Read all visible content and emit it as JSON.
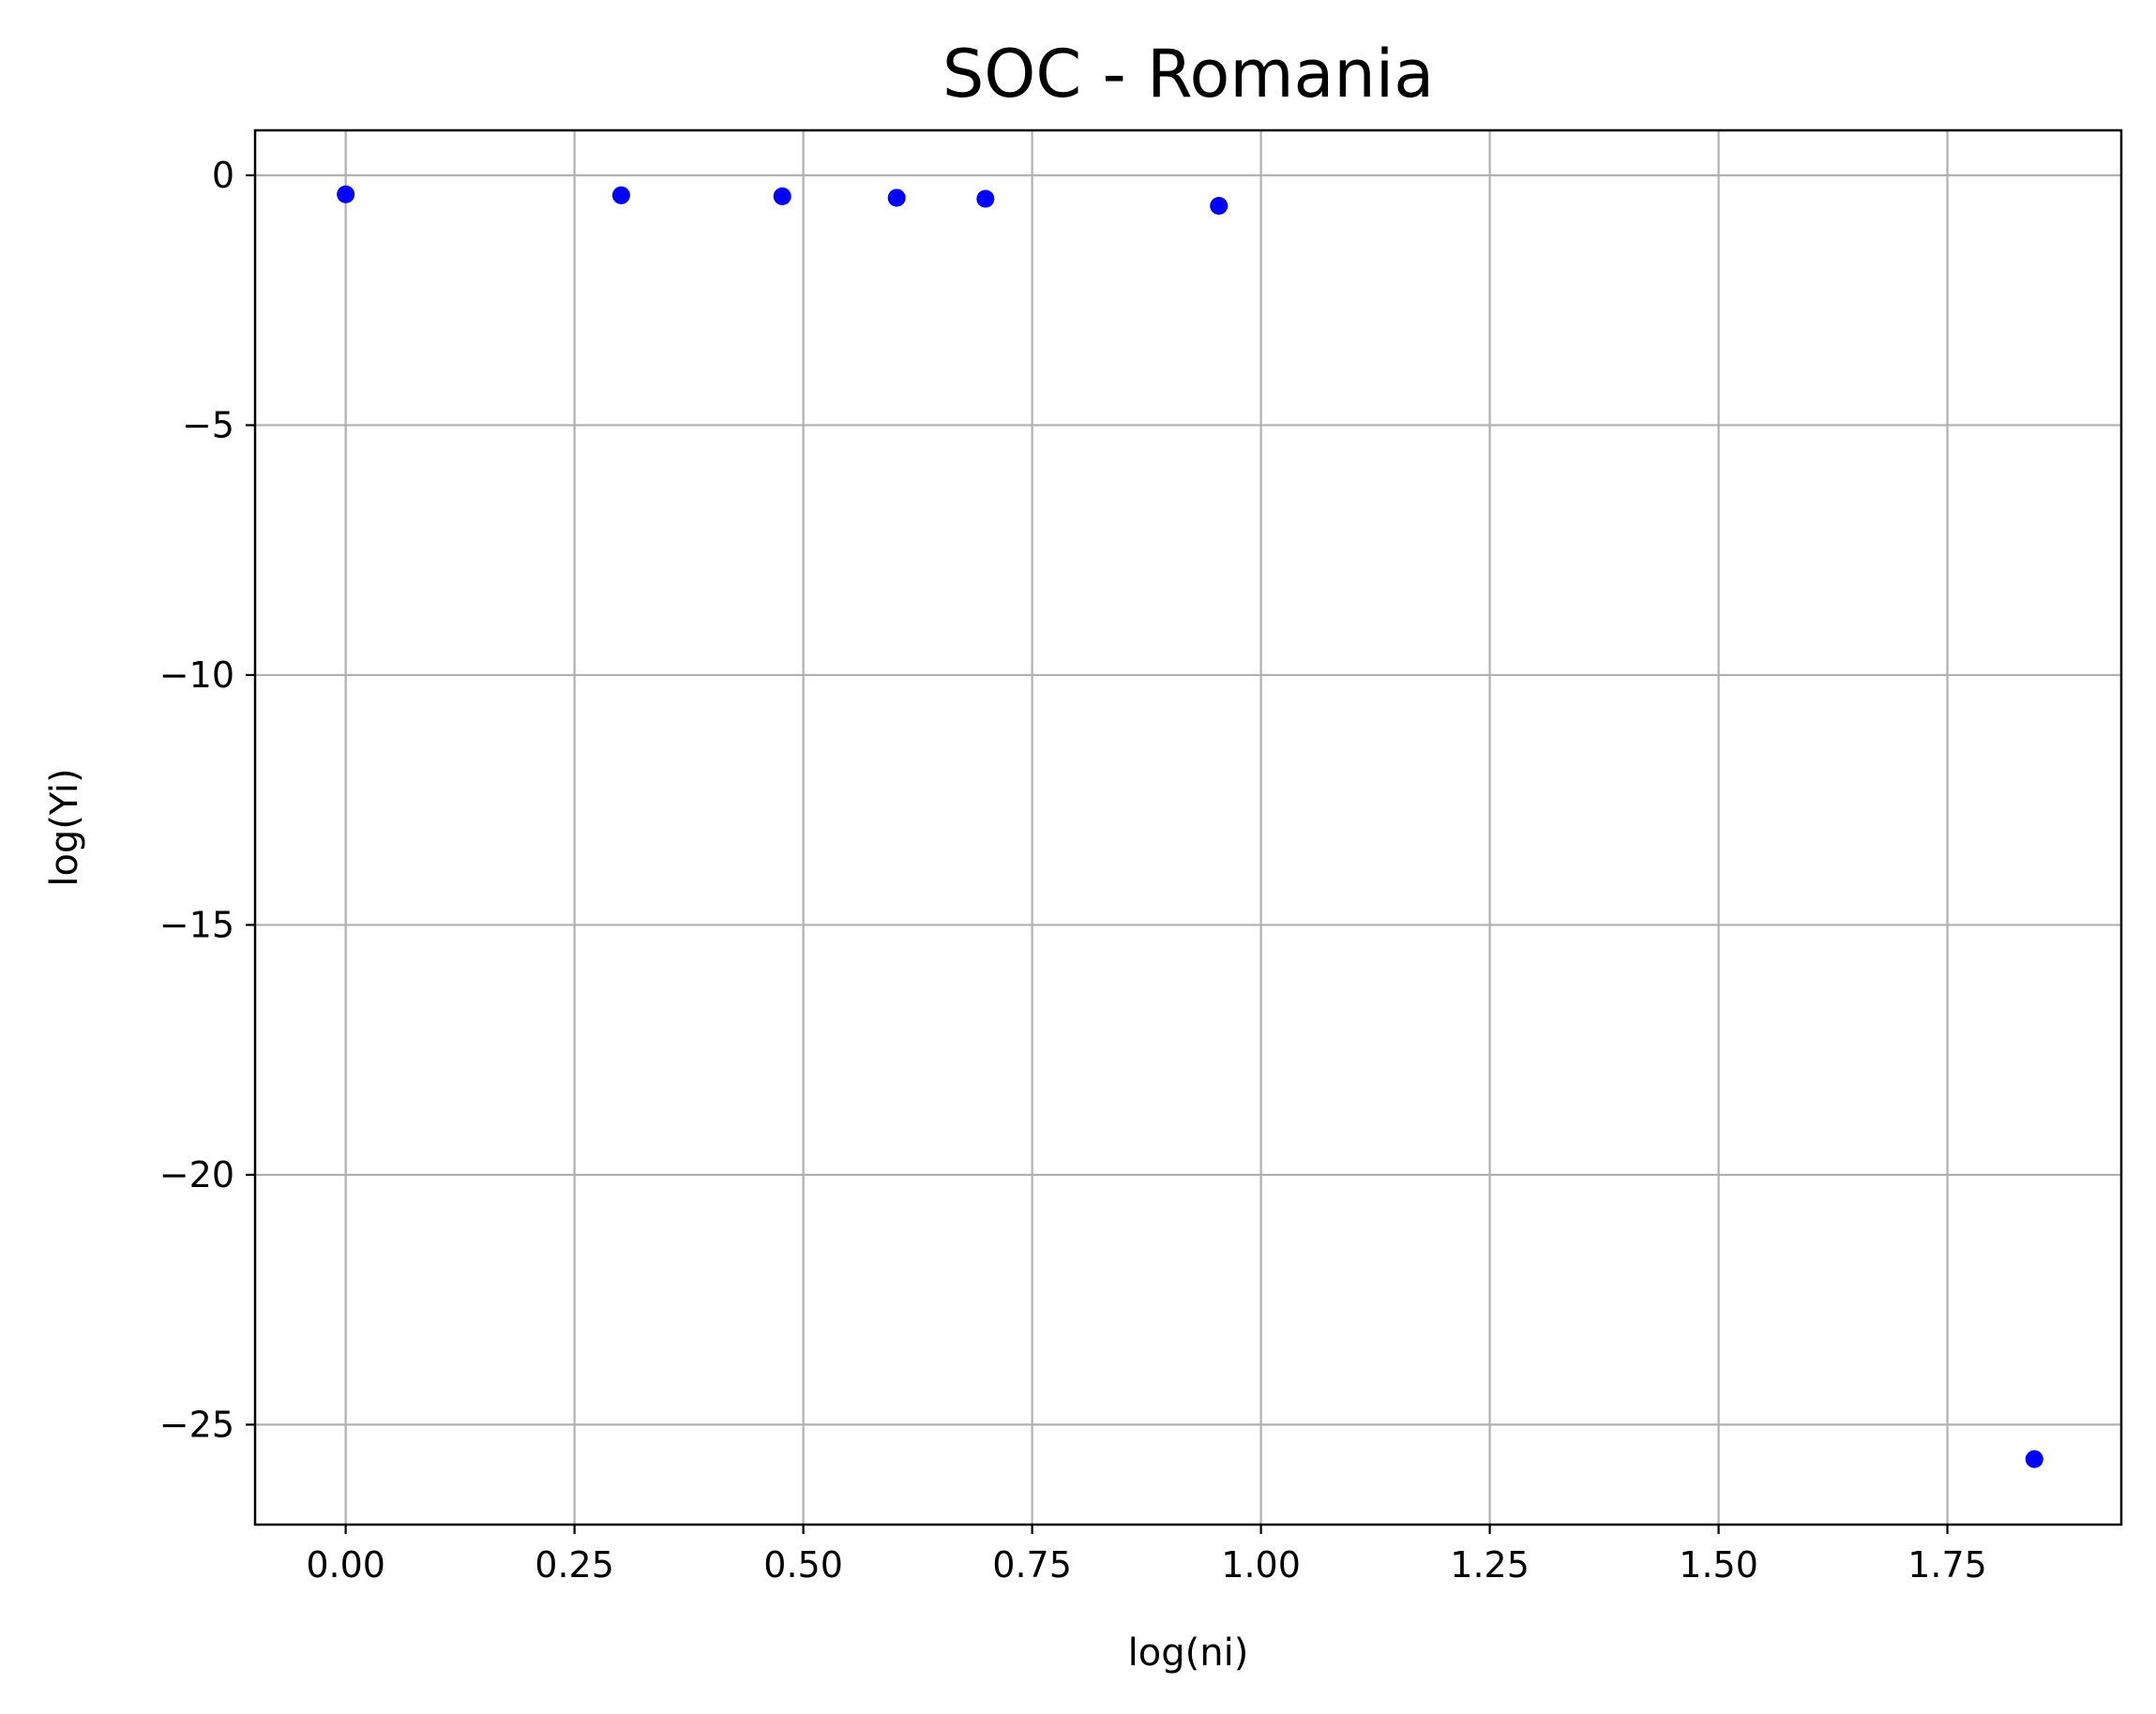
{
  "chart_data": {
    "type": "scatter",
    "title": "SOC - Romania",
    "xlabel": "log(ni)",
    "ylabel": "log(Yi)",
    "xlim": [
      -0.099,
      1.94
    ],
    "ylim": [
      -27.0,
      0.9
    ],
    "x_ticks": [
      0.0,
      0.25,
      0.5,
      0.75,
      1.0,
      1.25,
      1.5,
      1.75
    ],
    "x_tick_labels": [
      "0.00",
      "0.25",
      "0.50",
      "0.75",
      "1.00",
      "1.25",
      "1.50",
      "1.75"
    ],
    "y_ticks": [
      0,
      -5,
      -10,
      -15,
      -20,
      -25
    ],
    "y_tick_labels": [
      "0",
      "−5",
      "−10",
      "−15",
      "−20",
      "−25"
    ],
    "grid": true,
    "series": [
      {
        "color": "#0000ff",
        "points": [
          {
            "x": 0.0,
            "y": -0.38
          },
          {
            "x": 0.301,
            "y": -0.4
          },
          {
            "x": 0.477,
            "y": -0.42
          },
          {
            "x": 0.602,
            "y": -0.45
          },
          {
            "x": 0.699,
            "y": -0.47
          },
          {
            "x": 0.954,
            "y": -0.61
          },
          {
            "x": 1.845,
            "y": -25.69
          }
        ]
      }
    ]
  }
}
